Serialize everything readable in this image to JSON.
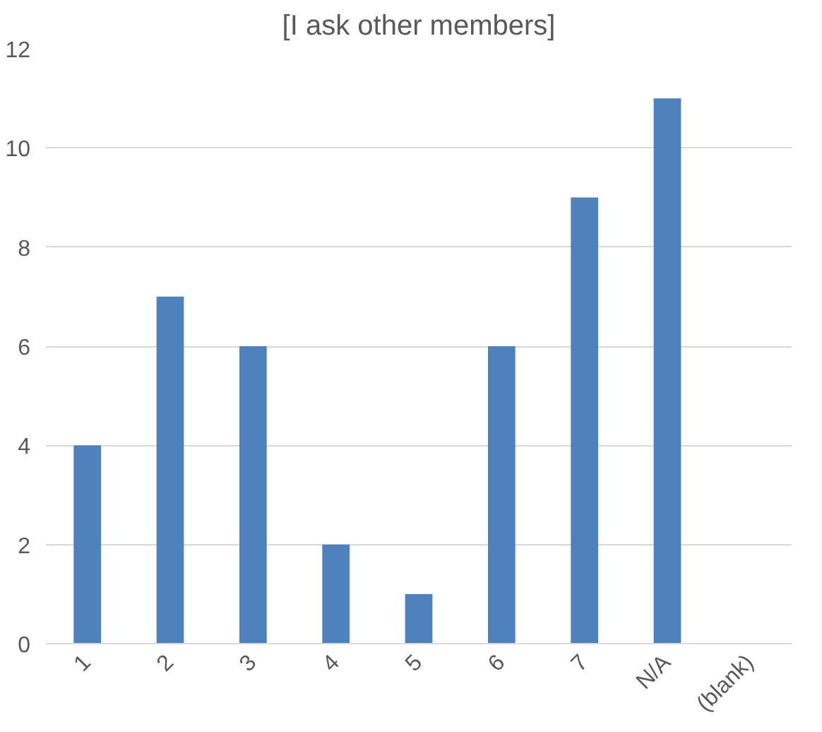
{
  "chart_data": {
    "type": "bar",
    "title": "[I ask other members]",
    "categories": [
      "1",
      "2",
      "3",
      "4",
      "5",
      "6",
      "7",
      "N/A",
      "(blank)"
    ],
    "values": [
      4,
      7,
      6,
      2,
      1,
      6,
      9,
      11,
      null
    ],
    "color": "#4f81bd",
    "ylim": [
      0,
      12
    ],
    "yticks": [
      0,
      2,
      4,
      6,
      8,
      10,
      12
    ],
    "grid": "y"
  }
}
